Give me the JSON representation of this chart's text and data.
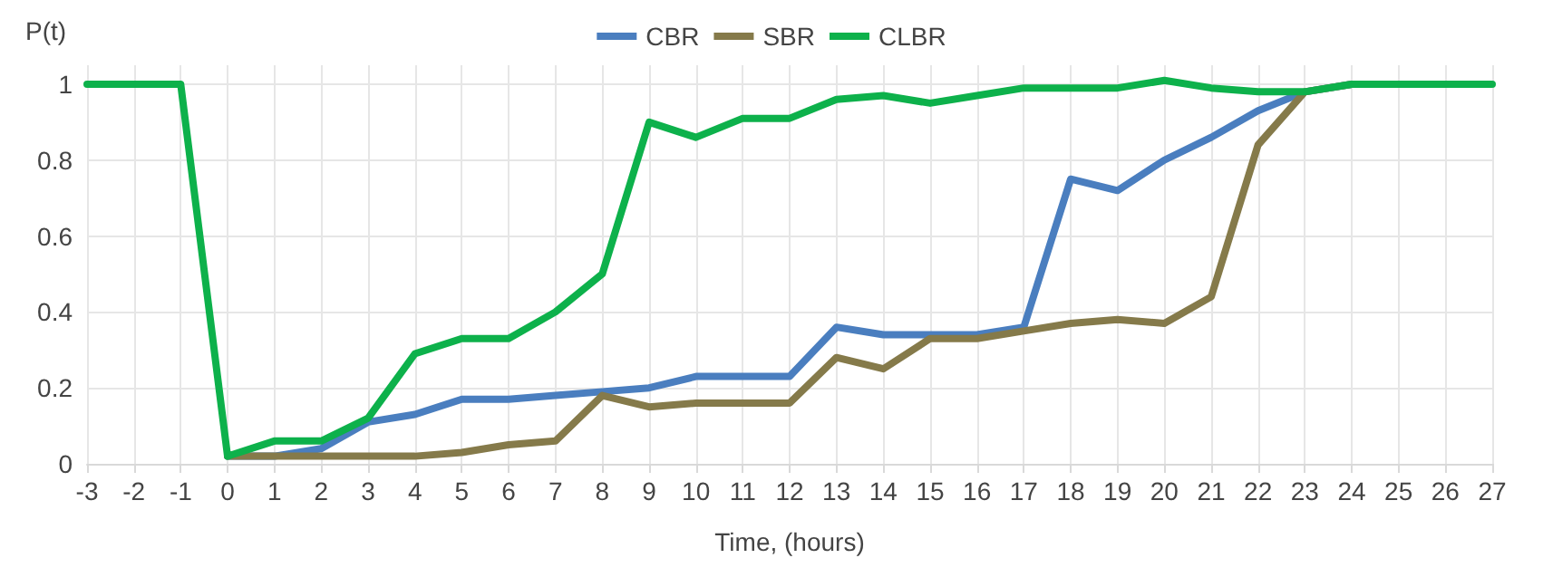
{
  "chart_data": {
    "type": "line",
    "xlabel": "Time, (hours)",
    "ylabel": "P(t)",
    "xlim": [
      -3,
      27
    ],
    "xticks": [
      -3,
      -2,
      -1,
      0,
      1,
      2,
      3,
      4,
      5,
      6,
      7,
      8,
      9,
      10,
      11,
      12,
      13,
      14,
      15,
      16,
      17,
      18,
      19,
      20,
      21,
      22,
      23,
      24,
      25,
      26,
      27
    ],
    "ylim": [
      0,
      1.05
    ],
    "yticks": [
      0,
      0.2,
      0.4,
      0.6,
      0.8,
      1
    ],
    "grid": true,
    "legend": "top",
    "marker": "none",
    "line_style": "solid",
    "series": [
      {
        "name": "CBR",
        "color": "#4a7ebf",
        "x": [
          0,
          1,
          2,
          3,
          4,
          5,
          6,
          7,
          8,
          9,
          10,
          11,
          12,
          13,
          14,
          15,
          16,
          17,
          18,
          19,
          20,
          21,
          22,
          23,
          24
        ],
        "values": [
          0.02,
          0.02,
          0.04,
          0.11,
          0.13,
          0.17,
          0.17,
          0.18,
          0.19,
          0.2,
          0.23,
          0.23,
          0.23,
          0.36,
          0.34,
          0.34,
          0.34,
          0.36,
          0.75,
          0.72,
          0.8,
          0.86,
          0.93,
          0.98,
          1
        ]
      },
      {
        "name": "SBR",
        "color": "#857a4a",
        "x": [
          0,
          1,
          2,
          3,
          4,
          5,
          6,
          7,
          8,
          9,
          10,
          11,
          12,
          13,
          14,
          15,
          16,
          17,
          18,
          19,
          20,
          21,
          22,
          23,
          24
        ],
        "values": [
          0.02,
          0.02,
          0.02,
          0.02,
          0.02,
          0.03,
          0.05,
          0.06,
          0.18,
          0.15,
          0.16,
          0.16,
          0.16,
          0.28,
          0.25,
          0.33,
          0.33,
          0.35,
          0.37,
          0.38,
          0.37,
          0.44,
          0.84,
          0.98,
          1
        ]
      },
      {
        "name": "CLBR",
        "color": "#0db14b",
        "x": [
          -3,
          -2,
          -1,
          0,
          1,
          2,
          3,
          4,
          5,
          6,
          7,
          8,
          9,
          10,
          11,
          12,
          13,
          14,
          15,
          16,
          17,
          18,
          19,
          20,
          21,
          22,
          23,
          24,
          25,
          26,
          27
        ],
        "values": [
          1,
          1,
          1,
          0.02,
          0.06,
          0.06,
          0.12,
          0.29,
          0.33,
          0.33,
          0.4,
          0.5,
          0.9,
          0.86,
          0.91,
          0.91,
          0.96,
          0.97,
          0.95,
          0.97,
          0.99,
          0.99,
          0.99,
          1.01,
          0.99,
          0.98,
          0.98,
          1,
          1,
          1,
          1
        ]
      }
    ]
  }
}
